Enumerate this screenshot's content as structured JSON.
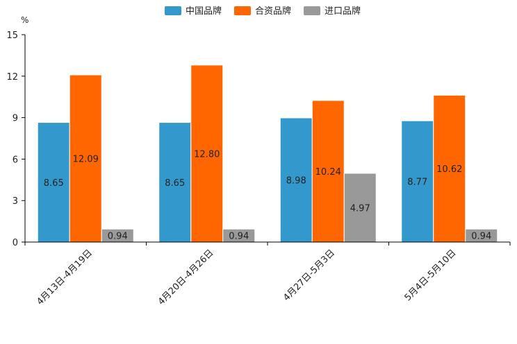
{
  "chart_data": {
    "type": "bar",
    "title": "",
    "ylabel": "%",
    "xlabel": "",
    "ylim": [
      0,
      15
    ],
    "yticks": [
      0,
      3,
      6,
      9,
      12,
      15
    ],
    "categories": [
      "4月13日-4月19日",
      "4月20日-4月26日",
      "4月27日-5月3日",
      "5月4日-5月10日"
    ],
    "series": [
      {
        "name": "中国品牌",
        "color": "#3399cc",
        "values": [
          8.65,
          8.65,
          8.98,
          8.77
        ],
        "labels": [
          "8.65",
          "8.65",
          "8.98",
          "8.77"
        ]
      },
      {
        "name": "合资品牌",
        "color": "#ff6600",
        "values": [
          12.09,
          12.8,
          10.24,
          10.62
        ],
        "labels": [
          "12.09",
          "12.80",
          "10.24",
          "10.62"
        ]
      },
      {
        "name": "进口品牌",
        "color": "#999999",
        "values": [
          0.94,
          0.94,
          4.97,
          0.94
        ],
        "labels": [
          "0.94",
          "0.94",
          "4.97",
          "0.94"
        ]
      }
    ],
    "legend_position": "top-center",
    "grid": false
  }
}
